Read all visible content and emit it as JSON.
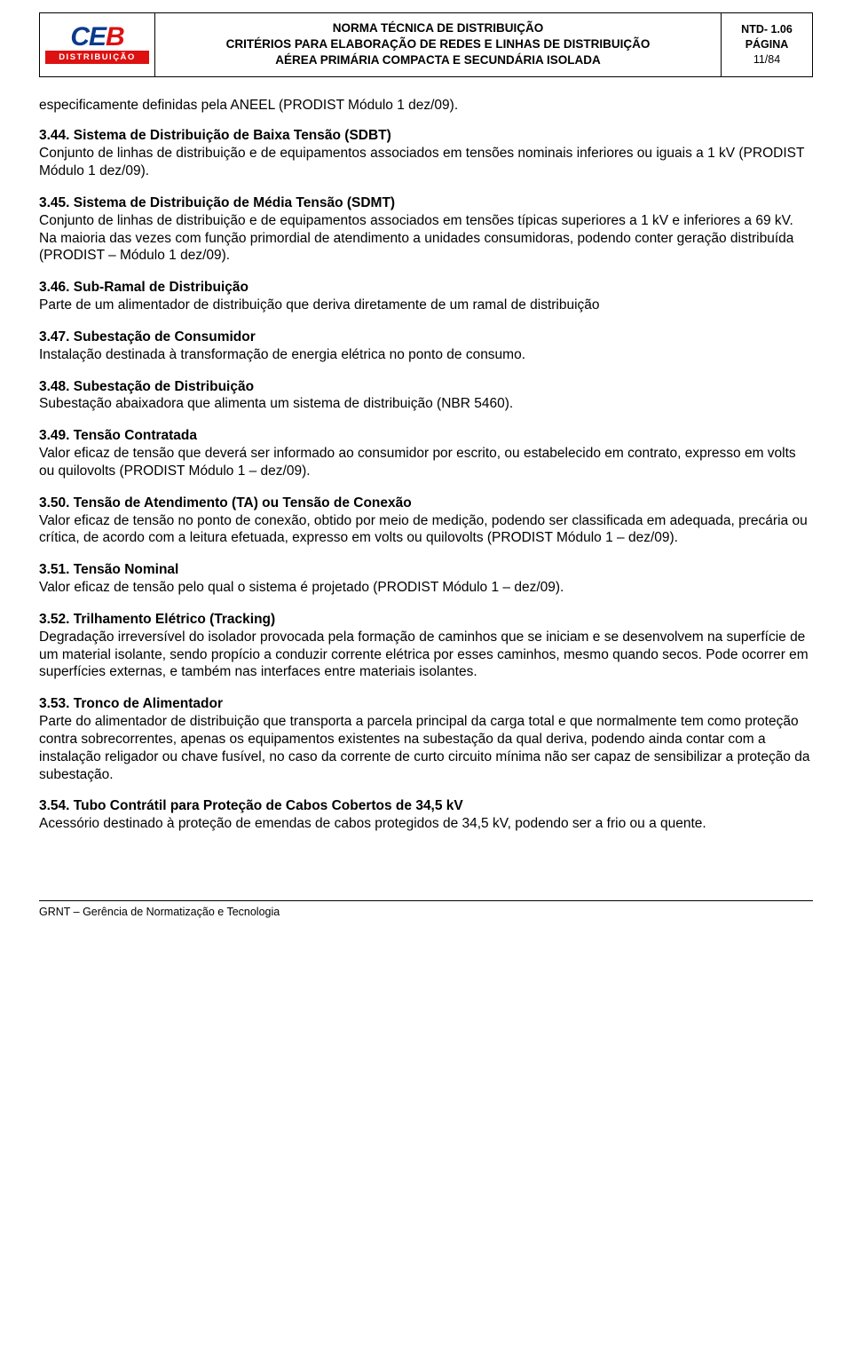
{
  "header": {
    "logo_text": "CEB",
    "logo_sub": "DISTRIBUIÇÃO",
    "title_line1": "NORMA TÉCNICA DE DISTRIBUIÇÃO",
    "title_line2": "CRITÉRIOS PARA ELABORAÇÃO DE REDES E LINHAS DE DISTRIBUIÇÃO",
    "title_line3": "AÉREA PRIMÁRIA COMPACTA E SECUNDÁRIA ISOLADA",
    "ntd": "NTD- 1.06",
    "pagina_label": "PÁGINA",
    "pagina": "11/84"
  },
  "intro": "especificamente definidas pela ANEEL (PRODIST Módulo 1 dez/09).",
  "sections": [
    {
      "title": "3.44. Sistema de Distribuição de Baixa Tensão (SDBT)",
      "body": "Conjunto de linhas de distribuição e de equipamentos associados em tensões nominais inferiores ou iguais a 1 kV (PRODIST Módulo 1 dez/09)."
    },
    {
      "title": "3.45. Sistema de Distribuição de Média Tensão (SDMT)",
      "body": "Conjunto de linhas de distribuição e de equipamentos associados em tensões típicas superiores a 1 kV e inferiores a 69 kV. Na maioria das vezes com função primordial de atendimento a unidades consumidoras, podendo conter geração distribuída (PRODIST – Módulo 1 dez/09)."
    },
    {
      "title": "3.46. Sub-Ramal de Distribuição",
      "body": "Parte de um alimentador de distribuição que deriva diretamente de um ramal de distribuição"
    },
    {
      "title": "3.47. Subestação de Consumidor",
      "body": "Instalação destinada à transformação de energia elétrica no ponto de consumo."
    },
    {
      "title": "3.48. Subestação de Distribuição",
      "body": "Subestação abaixadora que alimenta um sistema de distribuição (NBR 5460)."
    },
    {
      "title": "3.49. Tensão Contratada",
      "body": "Valor eficaz de tensão que deverá ser informado ao consumidor por escrito, ou estabelecido em contrato, expresso em volts ou quilovolts (PRODIST Módulo 1 – dez/09)."
    },
    {
      "title": "3.50. Tensão de Atendimento (TA) ou Tensão de Conexão",
      "body": "Valor eficaz de tensão no ponto de conexão, obtido por meio de medição, podendo ser classificada em adequada, precária ou crítica, de acordo com a leitura efetuada, expresso em volts ou quilovolts (PRODIST Módulo 1 – dez/09)."
    },
    {
      "title": "3.51. Tensão Nominal",
      "body": "Valor eficaz de tensão pelo qual o sistema é projetado (PRODIST Módulo 1 – dez/09)."
    },
    {
      "title": "3.52. Trilhamento Elétrico (Tracking)",
      "body": "Degradação irreversível do isolador provocada pela formação de caminhos que se iniciam e se desenvolvem na superfície de um material isolante, sendo propício a conduzir corrente elétrica por esses caminhos, mesmo quando secos. Pode ocorrer em superfícies externas, e também nas interfaces entre materiais isolantes."
    },
    {
      "title": "3.53. Tronco de Alimentador",
      "body": "Parte do alimentador de distribuição que transporta a parcela principal da carga total e que normalmente tem como proteção contra sobrecorrentes, apenas os equipamentos existentes na subestação da qual deriva, podendo ainda contar com a instalação religador ou chave fusível, no caso da corrente de curto circuito mínima não ser capaz de sensibilizar a proteção da subestação."
    },
    {
      "title": "3.54. Tubo Contrátil para Proteção de Cabos Cobertos de 34,5 kV",
      "body": "Acessório destinado à proteção de emendas de cabos protegidos de 34,5 kV, podendo ser a frio ou a quente."
    }
  ],
  "footer": "GRNT – Gerência de Normatização e Tecnologia"
}
